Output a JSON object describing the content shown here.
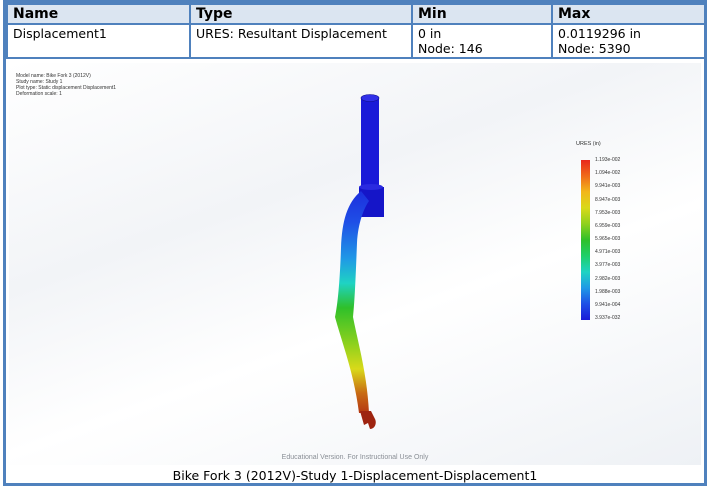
{
  "table": {
    "headers": [
      "Name",
      "Type",
      "Min",
      "Max"
    ],
    "row": {
      "name": "Displacement1",
      "type": "URES: Resultant Displacement",
      "min_value": "0 in",
      "min_node": "Node: 146",
      "max_value": "0.0119296 in",
      "max_node": "Node: 5390"
    }
  },
  "plot_info": {
    "model_name": "Model name: Bike Fork 3 (2012V)",
    "study_name": "Study name: Study 1",
    "plot_type": "Plot type: Static displacement Displacement1",
    "deformation_scale": "Deformation scale: 1"
  },
  "legend": {
    "title": "URES (in)",
    "ticks": [
      "1.193e-002",
      "1.094e-002",
      "9.941e-003",
      "8.947e-003",
      "7.953e-003",
      "6.959e-003",
      "5.965e-003",
      "4.971e-003",
      "3.977e-003",
      "2.982e-003",
      "1.988e-003",
      "9.941e-004",
      "3.937e-032"
    ]
  },
  "watermark": "Educational Version. For Instructional Use Only",
  "caption": "Bike Fork 3 (2012V)-Study 1-Displacement-Displacement1",
  "colors": {
    "border": "#4f81bd",
    "header_bg": "#dbe5f1"
  }
}
